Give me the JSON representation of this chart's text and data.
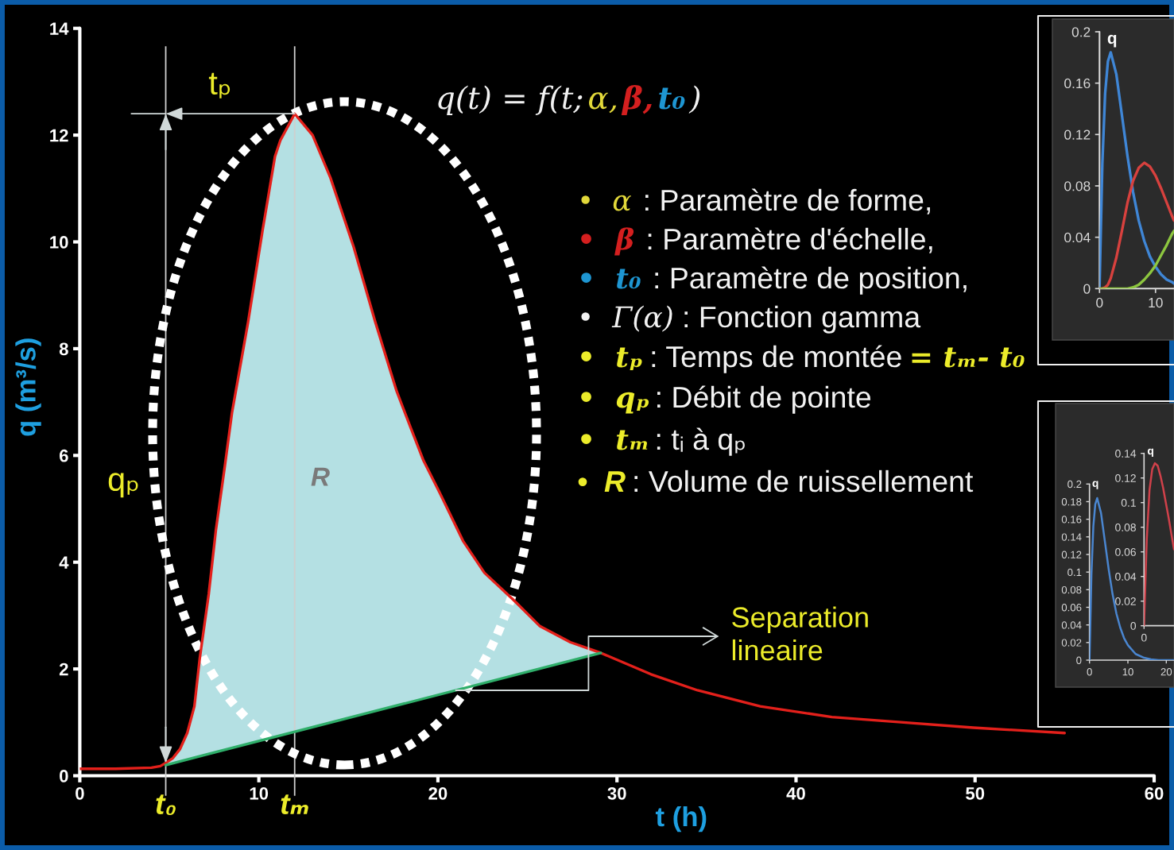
{
  "chart_data": [
    {
      "type": "line",
      "xlabel": "t (h)",
      "ylabel": "q (m³/s)",
      "xlim": [
        0,
        60
      ],
      "xticks": [
        0,
        10,
        20,
        30,
        40,
        50,
        60
      ],
      "ylim": [
        0,
        14
      ],
      "yticks": [
        0,
        2,
        4,
        6,
        8,
        10,
        12,
        14
      ],
      "series": [
        {
          "type": "line",
          "color": "#e3201b",
          "x": [
            0,
            2,
            4,
            4.5,
            4.8,
            5.2,
            5.6,
            6.0,
            6.4,
            6.7,
            7.2,
            7.6,
            8.1,
            8.5,
            9.4,
            10.2,
            10.9,
            11.2,
            12.0,
            13.0,
            14.0,
            15.3,
            16.5,
            17.7,
            18.5,
            19.2,
            20.1,
            21.4,
            22.6,
            24.2,
            25.7,
            27.4,
            29.1,
            31.9,
            34.5,
            38.0,
            42.0,
            46.0,
            49.9,
            55.0
          ],
          "values": [
            0.13,
            0.13,
            0.15,
            0.18,
            0.24,
            0.33,
            0.5,
            0.8,
            1.3,
            2.2,
            3.4,
            4.6,
            5.8,
            6.8,
            8.5,
            10.2,
            11.6,
            11.9,
            12.4,
            12.0,
            11.2,
            9.9,
            8.5,
            7.2,
            6.5,
            5.9,
            5.3,
            4.4,
            3.8,
            3.3,
            2.8,
            2.5,
            2.3,
            1.9,
            1.6,
            1.3,
            1.1,
            1.0,
            0.9,
            0.8
          ],
          "lower": [
            null,
            null,
            null,
            null,
            0.2,
            0.23,
            0.27,
            0.3,
            0.34,
            0.36,
            0.41,
            0.44,
            0.49,
            0.52,
            0.6,
            0.67,
            0.73,
            0.75,
            0.82,
            0.91,
            0.99,
            1.11,
            1.21,
            1.31,
            1.38,
            1.44,
            1.52,
            1.63,
            1.74,
            1.88,
            2.01,
            2.15,
            2.3,
            null,
            null,
            null,
            null,
            null,
            null,
            null
          ],
          "upper": [
            null,
            null,
            null,
            null,
            0.24,
            0.33,
            0.5,
            0.8,
            1.3,
            2.2,
            3.4,
            4.6,
            5.8,
            6.8,
            8.5,
            10.2,
            11.6,
            11.9,
            12.4,
            12.0,
            11.2,
            9.9,
            8.5,
            7.2,
            6.5,
            5.9,
            5.3,
            4.4,
            3.8,
            3.3,
            2.8,
            2.5,
            2.3,
            null,
            null,
            null,
            null,
            null,
            null,
            null
          ]
        },
        {
          "type": "line",
          "color": "#2fae6a",
          "x": [
            4.8,
            29.1
          ],
          "values": [
            0.2,
            2.3
          ]
        }
      ],
      "ref_lines": [
        {
          "axis": "x",
          "value": 4.8,
          "label": "t₀"
        },
        {
          "axis": "x",
          "value": 12,
          "label": "tₘ"
        }
      ],
      "annotations": [
        "q(t) = f(t;",
        "α,",
        "β,",
        "t₀",
        ")",
        "•  α",
        ": Paramètre de forme,",
        "•  β",
        ": Paramètre d'échelle,",
        "•  t₀",
        ": Paramètre de position,",
        "•  Γ(α)",
        ": Fonction gamma",
        "•  tₚ",
        ": Temps de montée",
        "= tₘ- t₀",
        "•  qₚ",
        ": Débit de pointe",
        "•  tₘ",
        ": tᵢ à qₚ",
        "•  R",
        ": Volume de ruissellement",
        "tₚ",
        "R",
        {
          "text": "qₚ",
          "x": 4.8,
          "y": 5.5
        },
        {
          "text": "Separation\nlineaire",
          "x": 21.0,
          "y": 1.6
        }
      ]
    },
    {
      "type": "line",
      "ylabel": "q",
      "xlim": [
        0,
        13.3
      ],
      "xticks": [
        0,
        10
      ],
      "ylim": [
        0,
        0.2
      ],
      "yticks": [
        0,
        0.04,
        0.08,
        0.12,
        0.16,
        0.2
      ],
      "x": [
        0,
        0.5,
        1,
        1.5,
        2,
        3,
        4,
        5,
        6,
        7,
        8,
        9,
        10,
        11,
        12,
        13,
        13.3
      ],
      "series": [
        {
          "color": "#3f86d6",
          "values": [
            0,
            0.097,
            0.152,
            0.177,
            0.184,
            0.167,
            0.135,
            0.103,
            0.075,
            0.053,
            0.037,
            0.025,
            0.017,
            0.011,
            0.007,
            0.005,
            0.004
          ]
        },
        {
          "color": "#d8413e",
          "values": [
            0,
            0,
            0.001,
            0.003,
            0.008,
            0.024,
            0.045,
            0.067,
            0.084,
            0.094,
            0.098,
            0.095,
            0.088,
            0.078,
            0.067,
            0.056,
            0.053
          ]
        },
        {
          "color": "#8dc63f",
          "values": [
            0,
            0,
            0,
            0,
            0,
            0,
            0,
            0,
            0.001,
            0.003,
            0.007,
            0.012,
            0.018,
            0.026,
            0.034,
            0.043,
            0.045
          ]
        }
      ]
    },
    {
      "type": "line",
      "ylabel": "q",
      "xlim": [
        0,
        22
      ],
      "xticks": [
        0,
        10,
        20
      ],
      "ylim": [
        0,
        0.2
      ],
      "yticks": [
        0,
        0.02,
        0.04,
        0.06,
        0.08,
        0.1,
        0.12,
        0.14,
        0.16,
        0.18,
        0.2
      ],
      "x": [
        0,
        0.5,
        1,
        1.5,
        2,
        3,
        4,
        5,
        6,
        7,
        8,
        9,
        10,
        12,
        14,
        16,
        18,
        20,
        22
      ],
      "series": [
        {
          "color": "#4a86d0",
          "values": [
            0,
            0.097,
            0.152,
            0.177,
            0.184,
            0.167,
            0.135,
            0.103,
            0.075,
            0.053,
            0.037,
            0.025,
            0.017,
            0.007,
            0.003,
            0.001,
            0,
            0,
            0
          ]
        }
      ]
    },
    {
      "type": "line",
      "ylabel": "q",
      "categories": [
        "0",
        null,
        null,
        null,
        null,
        null,
        null,
        null,
        null,
        null,
        null,
        null
      ],
      "ylim": [
        0,
        0.14
      ],
      "yticks": [
        0,
        0.02,
        0.04,
        0.06,
        0.08,
        0.1,
        0.12,
        0.14
      ],
      "series": [
        {
          "color": "#d0414a",
          "values": [
            0,
            0.07,
            0.11,
            0.127,
            0.132,
            0.13,
            0.122,
            0.112,
            0.1,
            0.088,
            0.075,
            0.062
          ]
        }
      ]
    }
  ]
}
